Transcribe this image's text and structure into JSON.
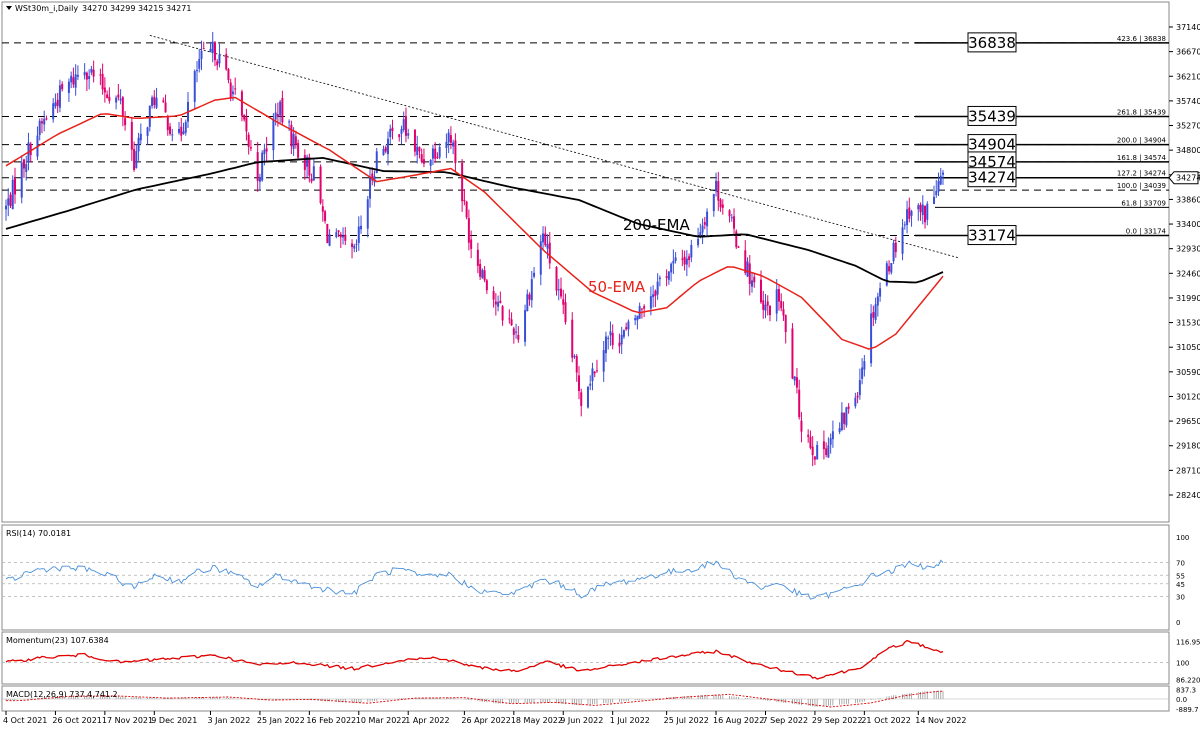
{
  "window": {
    "title": "WSt30m_i,Daily",
    "ohlc": "34270 34299 34215 34271"
  },
  "colors": {
    "bull": "#3a4fd8",
    "bear": "#e0006e",
    "ema50": "#e8221a",
    "ema200": "#000000",
    "rsi": "#4a90d9",
    "momentum": "#e00000",
    "grid": "#b0b0b0"
  },
  "chart_data": {
    "type": "candlestick",
    "price_panel": {
      "ylim": [
        28000,
        37300
      ],
      "y_ticks": [
        "37140",
        "36670",
        "36210",
        "35740",
        "35270",
        "34800",
        "34330",
        "33860",
        "33400",
        "32930",
        "32460",
        "31990",
        "31530",
        "31050",
        "30590",
        "30120",
        "29650",
        "29180",
        "28710",
        "28240"
      ],
      "current_price_label": "34274",
      "levels": [
        {
          "value": 36838,
          "label": "36838",
          "fib": "423.6 | 36838",
          "boxed": true,
          "style": "dashed"
        },
        {
          "value": 35439,
          "label": "35439",
          "fib": "261.8 | 35439",
          "boxed": true,
          "style": "dashed"
        },
        {
          "value": 34904,
          "label": "34904",
          "fib": "200.0 | 34904",
          "boxed": true,
          "style": "dashed"
        },
        {
          "value": 34574,
          "label": "34574",
          "fib": "161.8 | 34574",
          "boxed": true,
          "style": "dashed"
        },
        {
          "value": 34274,
          "label": "34274",
          "fib": "127.2 | 34274",
          "boxed": true,
          "style": "dashed"
        },
        {
          "value": 34039,
          "label": "",
          "fib": "100.0 | 34039",
          "boxed": false,
          "style": "dashed"
        },
        {
          "value": 33709,
          "label": "",
          "fib": "61.8 | 33709",
          "boxed": false,
          "style": "solid"
        },
        {
          "value": 33174,
          "label": "33174",
          "fib": "0.0 | 33174",
          "boxed": true,
          "style": "dashed"
        }
      ],
      "trendline": {
        "from": [
          "7 Dec 2021",
          36980
        ],
        "to": [
          "2 Dec 2022",
          32750
        ]
      },
      "ema_labels": [
        "200-EMA",
        "50-EMA"
      ],
      "x_start": "4 Oct 2021",
      "x_end": "25 Nov 2022",
      "close_anchors": [
        [
          "2021-10-04",
          33700
        ],
        [
          "2021-10-15",
          34900
        ],
        [
          "2021-10-27",
          35800
        ],
        [
          "2021-11-08",
          36400
        ],
        [
          "2021-11-16",
          36000
        ],
        [
          "2021-11-24",
          35700
        ],
        [
          "2021-11-30",
          34600
        ],
        [
          "2021-12-09",
          35800
        ],
        [
          "2021-12-20",
          35000
        ],
        [
          "2021-12-29",
          36480
        ],
        [
          "2022-01-05",
          36700
        ],
        [
          "2022-01-14",
          35800
        ],
        [
          "2022-01-24",
          34300
        ],
        [
          "2022-02-02",
          35600
        ],
        [
          "2022-02-11",
          34800
        ],
        [
          "2022-02-18",
          34300
        ],
        [
          "2022-02-24",
          33200
        ],
        [
          "2022-03-08",
          32800
        ],
        [
          "2022-03-18",
          34700
        ],
        [
          "2022-03-29",
          35300
        ],
        [
          "2022-04-07",
          34600
        ],
        [
          "2022-04-20",
          35100
        ],
        [
          "2022-04-29",
          33000
        ],
        [
          "2022-05-11",
          31800
        ],
        [
          "2022-05-20",
          31300
        ],
        [
          "2022-05-31",
          33200
        ],
        [
          "2022-06-10",
          31500
        ],
        [
          "2022-06-17",
          30100
        ],
        [
          "2022-06-28",
          31200
        ],
        [
          "2022-07-07",
          31300
        ],
        [
          "2022-07-15",
          31900
        ],
        [
          "2022-07-25",
          32500
        ],
        [
          "2022-08-04",
          32800
        ],
        [
          "2022-08-16",
          34100
        ],
        [
          "2022-08-26",
          33000
        ],
        [
          "2022-09-06",
          31700
        ],
        [
          "2022-09-13",
          32000
        ],
        [
          "2022-09-23",
          29600
        ],
        [
          "2022-09-30",
          29000
        ],
        [
          "2022-10-10",
          29500
        ],
        [
          "2022-10-18",
          30300
        ],
        [
          "2022-10-25",
          31800
        ],
        [
          "2022-11-02",
          32800
        ],
        [
          "2022-11-10",
          33700
        ],
        [
          "2022-11-17",
          33600
        ],
        [
          "2022-11-25",
          34271
        ]
      ],
      "ema50_anchors": [
        [
          "2021-10-04",
          34500
        ],
        [
          "2021-10-27",
          35100
        ],
        [
          "2021-11-16",
          35500
        ],
        [
          "2021-12-01",
          35400
        ],
        [
          "2021-12-20",
          35450
        ],
        [
          "2022-01-05",
          35750
        ],
        [
          "2022-01-14",
          35800
        ],
        [
          "2022-02-03",
          35300
        ],
        [
          "2022-02-25",
          34800
        ],
        [
          "2022-03-18",
          34200
        ],
        [
          "2022-04-01",
          34300
        ],
        [
          "2022-04-20",
          34450
        ],
        [
          "2022-05-05",
          34000
        ],
        [
          "2022-05-31",
          32900
        ],
        [
          "2022-06-22",
          32100
        ],
        [
          "2022-07-12",
          31700
        ],
        [
          "2022-07-25",
          31800
        ],
        [
          "2022-08-08",
          32300
        ],
        [
          "2022-08-22",
          32600
        ],
        [
          "2022-09-06",
          32400
        ],
        [
          "2022-09-23",
          32000
        ],
        [
          "2022-10-11",
          31200
        ],
        [
          "2022-10-24",
          31000
        ],
        [
          "2022-11-04",
          31300
        ],
        [
          "2022-11-25",
          32400
        ]
      ],
      "ema200_anchors": [
        [
          "2021-10-04",
          33300
        ],
        [
          "2021-11-01",
          33650
        ],
        [
          "2021-12-01",
          34050
        ],
        [
          "2022-01-03",
          34350
        ],
        [
          "2022-01-24",
          34570
        ],
        [
          "2022-02-22",
          34650
        ],
        [
          "2022-03-21",
          34400
        ],
        [
          "2022-04-18",
          34380
        ],
        [
          "2022-05-16",
          34100
        ],
        [
          "2022-06-16",
          33850
        ],
        [
          "2022-07-12",
          33400
        ],
        [
          "2022-08-08",
          33150
        ],
        [
          "2022-08-29",
          33200
        ],
        [
          "2022-09-26",
          32900
        ],
        [
          "2022-10-17",
          32600
        ],
        [
          "2022-10-31",
          32300
        ],
        [
          "2022-11-14",
          32280
        ],
        [
          "2022-11-25",
          32480
        ]
      ]
    },
    "rsi_panel": {
      "title": "RSI(14) 70.0181",
      "ylim": [
        0,
        100
      ],
      "y_ticks": [
        "100",
        "70",
        "55",
        "45",
        "30",
        "0"
      ],
      "levels": [
        70,
        55,
        45,
        30
      ],
      "anchors": [
        [
          "2021-10-04",
          47
        ],
        [
          "2021-10-15",
          60
        ],
        [
          "2021-10-27",
          64
        ],
        [
          "2021-11-08",
          62
        ],
        [
          "2021-11-16",
          57
        ],
        [
          "2021-11-24",
          48
        ],
        [
          "2021-11-30",
          40
        ],
        [
          "2021-12-09",
          55
        ],
        [
          "2021-12-20",
          48
        ],
        [
          "2021-12-29",
          60
        ],
        [
          "2022-01-05",
          64
        ],
        [
          "2022-01-14",
          55
        ],
        [
          "2022-01-24",
          42
        ],
        [
          "2022-02-02",
          55
        ],
        [
          "2022-02-11",
          47
        ],
        [
          "2022-02-24",
          38
        ],
        [
          "2022-03-08",
          34
        ],
        [
          "2022-03-18",
          56
        ],
        [
          "2022-03-29",
          62
        ],
        [
          "2022-04-07",
          52
        ],
        [
          "2022-04-20",
          56
        ],
        [
          "2022-04-29",
          40
        ],
        [
          "2022-05-11",
          33
        ],
        [
          "2022-05-20",
          35
        ],
        [
          "2022-05-31",
          50
        ],
        [
          "2022-06-10",
          42
        ],
        [
          "2022-06-17",
          32
        ],
        [
          "2022-06-28",
          44
        ],
        [
          "2022-07-07",
          48
        ],
        [
          "2022-07-15",
          52
        ],
        [
          "2022-07-25",
          58
        ],
        [
          "2022-08-04",
          62
        ],
        [
          "2022-08-16",
          70
        ],
        [
          "2022-08-26",
          52
        ],
        [
          "2022-09-06",
          40
        ],
        [
          "2022-09-13",
          46
        ],
        [
          "2022-09-23",
          31
        ],
        [
          "2022-09-30",
          28
        ],
        [
          "2022-10-10",
          36
        ],
        [
          "2022-10-18",
          43
        ],
        [
          "2022-10-25",
          55
        ],
        [
          "2022-11-02",
          60
        ],
        [
          "2022-11-10",
          68
        ],
        [
          "2022-11-17",
          65
        ],
        [
          "2022-11-25",
          70
        ]
      ]
    },
    "momentum_panel": {
      "title": "Momentum(23) 107.6384",
      "ylim": [
        86,
        118
      ],
      "y_ticks": [
        "116.952",
        "100",
        "86.2206"
      ],
      "levels": [
        100
      ],
      "anchors": [
        [
          "2021-10-04",
          100
        ],
        [
          "2021-10-20",
          104
        ],
        [
          "2021-11-08",
          106
        ],
        [
          "2021-11-24",
          100
        ],
        [
          "2021-12-09",
          102
        ],
        [
          "2022-01-05",
          106
        ],
        [
          "2022-01-24",
          98
        ],
        [
          "2022-02-11",
          100
        ],
        [
          "2022-03-08",
          95
        ],
        [
          "2022-03-29",
          102
        ],
        [
          "2022-04-14",
          104
        ],
        [
          "2022-05-02",
          96
        ],
        [
          "2022-05-20",
          93
        ],
        [
          "2022-06-01",
          101
        ],
        [
          "2022-06-17",
          93
        ],
        [
          "2022-07-07",
          99
        ],
        [
          "2022-07-25",
          104
        ],
        [
          "2022-08-16",
          109
        ],
        [
          "2022-09-06",
          97
        ],
        [
          "2022-09-30",
          88
        ],
        [
          "2022-10-18",
          95
        ],
        [
          "2022-11-02",
          112
        ],
        [
          "2022-11-10",
          117
        ],
        [
          "2022-11-25",
          108
        ]
      ]
    },
    "macd_panel": {
      "title": "MACD(12,26,9) 737.4,741.2",
      "ylim": [
        -900,
        900
      ],
      "y_ticks": [
        "837.3",
        "0.0",
        "-889.7"
      ],
      "anchors": [
        [
          "2021-10-04",
          -150
        ],
        [
          "2021-10-27",
          250
        ],
        [
          "2021-11-16",
          280
        ],
        [
          "2021-12-09",
          80
        ],
        [
          "2022-01-05",
          180
        ],
        [
          "2022-01-24",
          -100
        ],
        [
          "2022-02-11",
          -30
        ],
        [
          "2022-03-08",
          -380
        ],
        [
          "2022-03-29",
          80
        ],
        [
          "2022-04-20",
          120
        ],
        [
          "2022-05-11",
          -420
        ],
        [
          "2022-05-31",
          -300
        ],
        [
          "2022-06-17",
          -580
        ],
        [
          "2022-07-07",
          -200
        ],
        [
          "2022-07-25",
          150
        ],
        [
          "2022-08-16",
          420
        ],
        [
          "2022-09-06",
          -100
        ],
        [
          "2022-09-30",
          -720
        ],
        [
          "2022-10-18",
          -350
        ],
        [
          "2022-11-02",
          300
        ],
        [
          "2022-11-17",
          700
        ],
        [
          "2022-11-25",
          741
        ]
      ]
    },
    "x_ticks": [
      [
        "2021-10-04",
        "4 Oct 2021"
      ],
      [
        "2021-10-26",
        "26 Oct 2021"
      ],
      [
        "2021-11-17",
        "17 Nov 2021"
      ],
      [
        "2021-12-09",
        "9 Dec 2021"
      ],
      [
        "2022-01-03",
        "3 Jan 2022"
      ],
      [
        "2022-01-25",
        "25 Jan 2022"
      ],
      [
        "2022-02-16",
        "16 Feb 2022"
      ],
      [
        "2022-03-10",
        "10 Mar 2022"
      ],
      [
        "2022-04-01",
        "1 Apr 2022"
      ],
      [
        "2022-04-26",
        "26 Apr 2022"
      ],
      [
        "2022-05-18",
        "18 May 2022"
      ],
      [
        "2022-06-09",
        "9 Jun 2022"
      ],
      [
        "2022-07-01",
        "1 Jul 2022"
      ],
      [
        "2022-07-25",
        "25 Jul 2022"
      ],
      [
        "2022-08-16",
        "16 Aug 2022"
      ],
      [
        "2022-09-07",
        "7 Sep 2022"
      ],
      [
        "2022-09-29",
        "29 Sep 2022"
      ],
      [
        "2022-10-21",
        "21 Oct 2022"
      ],
      [
        "2022-11-14",
        "14 Nov 2022"
      ]
    ]
  }
}
